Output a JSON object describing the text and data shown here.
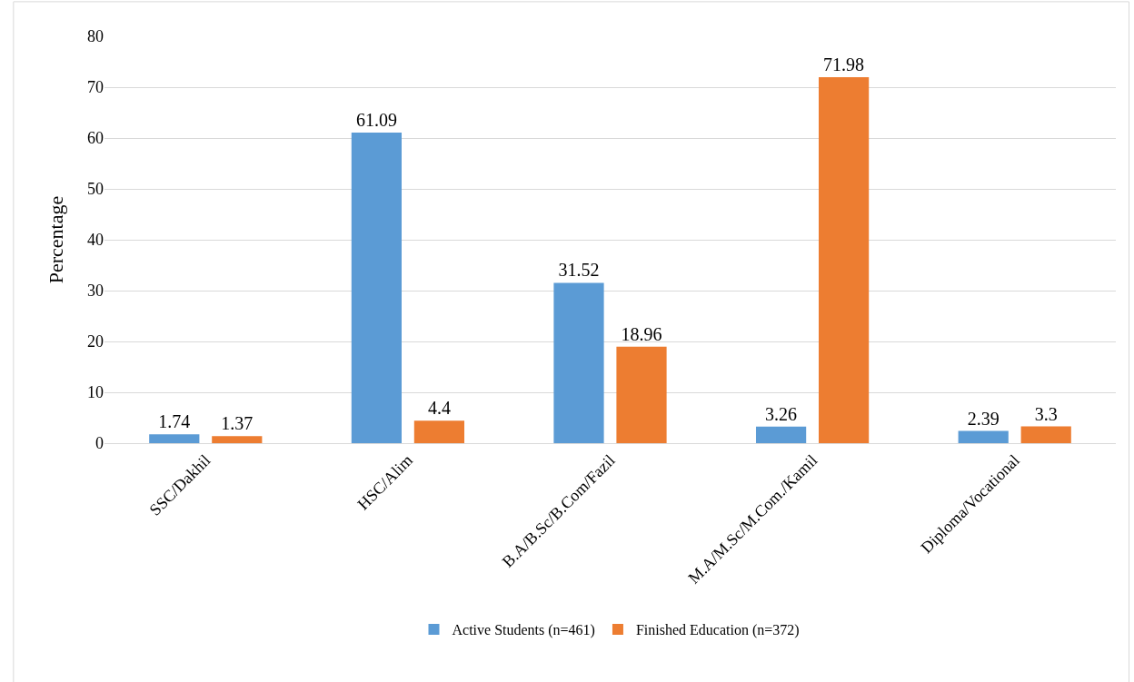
{
  "chart_data": {
    "type": "bar",
    "ylabel": "Percentage",
    "categories": [
      "SSC/Dakhil",
      "HSC/Alim",
      "B.A/B.Sc/B.Com/Fazil",
      "M.A/M.Sc/M.Com./Kamil",
      "Diploma/Vocational"
    ],
    "series": [
      {
        "name": "Active Students (n=461)",
        "color": "#5b9bd5",
        "values": [
          1.74,
          61.09,
          31.52,
          3.26,
          2.39
        ]
      },
      {
        "name": "Finished Education (n=372)",
        "color": "#ed7d31",
        "values": [
          1.37,
          4.4,
          18.96,
          71.98,
          3.3
        ]
      }
    ],
    "ylim": [
      0,
      80
    ],
    "yticks": [
      0,
      10,
      20,
      30,
      40,
      50,
      60,
      70,
      80
    ],
    "grid": "y",
    "legend": "bottom",
    "data_labels": true
  }
}
